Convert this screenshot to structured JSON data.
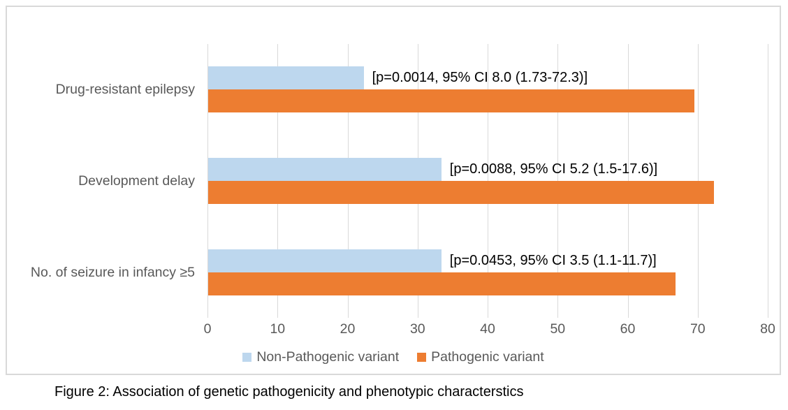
{
  "figure": {
    "caption": "Figure 2: Association of genetic pathogenicity and phenotypic characterstics"
  },
  "chart_data": {
    "type": "bar",
    "orientation": "horizontal",
    "title": "",
    "xlabel": "",
    "ylabel": "",
    "categories": [
      "Drug-resistant epilepsy",
      "Development delay",
      "No. of seizure in infancy ≥5"
    ],
    "series": [
      {
        "name": "Non-Pathogenic variant",
        "color": "#BDD7EE",
        "values": [
          22.2,
          33.3,
          33.3
        ]
      },
      {
        "name": "Pathogenic variant",
        "color": "#ED7D31",
        "values": [
          69.4,
          72.2,
          66.7
        ]
      }
    ],
    "annotations": [
      "[p=0.0014, 95% CI 8.0 (1.73-72.3)]",
      "[p=0.0088, 95% CI 5.2 (1.5-17.6)]",
      "[p=0.0453, 95% CI 3.5 (1.1-11.7)]"
    ],
    "xlim": [
      0,
      80
    ],
    "x_ticks": [
      0,
      10,
      20,
      30,
      40,
      50,
      60,
      70,
      80
    ],
    "grid": true,
    "legend_position": "bottom",
    "colors": {
      "gridline": "#D9D9D9",
      "chart_border": "#D9D9D9",
      "axis_text": "#595959",
      "category_text": "#595959",
      "legend_text": "#595959",
      "annotation_text": "#000000",
      "background": "#FFFFFF"
    }
  }
}
